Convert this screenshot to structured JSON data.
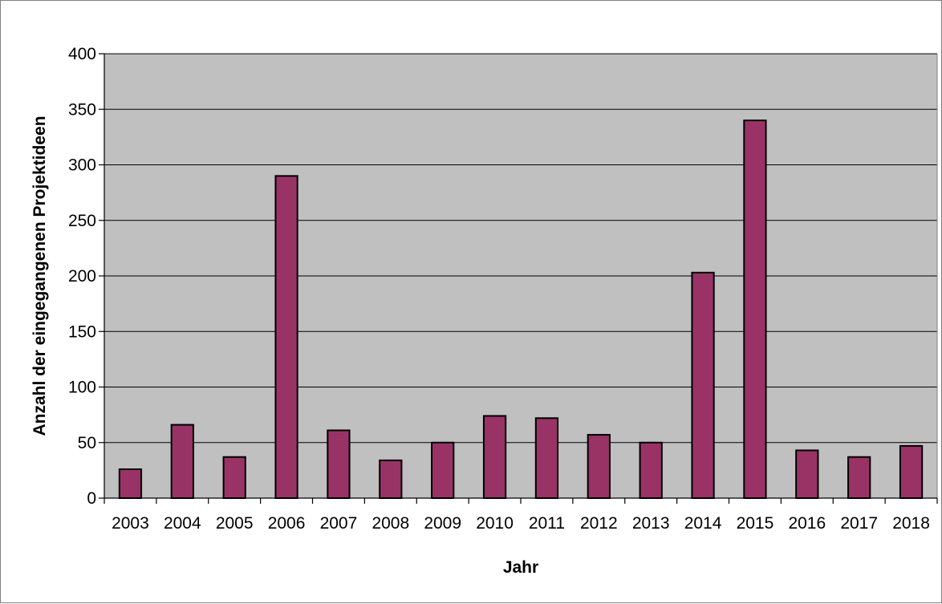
{
  "chart_data": {
    "type": "bar",
    "title": "",
    "xlabel": "Jahr",
    "ylabel": "Anzahl der eingegangenen Projektideen",
    "categories": [
      "2003",
      "2004",
      "2005",
      "2006",
      "2007",
      "2008",
      "2009",
      "2010",
      "2011",
      "2012",
      "2013",
      "2014",
      "2015",
      "2016",
      "2017",
      "2018"
    ],
    "values": [
      26,
      66,
      37,
      290,
      61,
      34,
      50,
      74,
      72,
      57,
      50,
      203,
      340,
      43,
      37,
      47
    ],
    "ylim": [
      0,
      400
    ],
    "yticks": [
      0,
      50,
      100,
      150,
      200,
      250,
      300,
      350,
      400
    ],
    "grid": true,
    "legend": "none",
    "colors": {
      "bar_fill": "#993366",
      "bar_stroke": "#000000",
      "plot_background": "#c0c0c0",
      "gridline": "#000000",
      "page_background": "#ffffff"
    }
  }
}
